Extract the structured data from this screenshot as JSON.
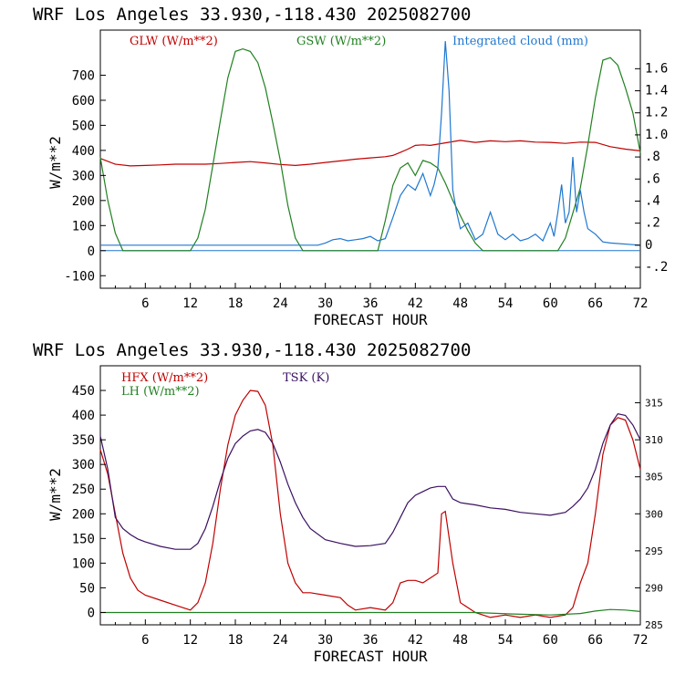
{
  "chart_data": [
    {
      "type": "line",
      "title": "WRF  Los Angeles   33.930,-118.430  2025082700",
      "xlabel": "FORECAST HOUR",
      "ylabel": "W/m**2",
      "xlim": [
        0,
        72
      ],
      "ylim": [
        -150,
        880
      ],
      "y2lim": [
        -0.39,
        1.95
      ],
      "grid": false,
      "legend_position": "top",
      "x_ticks": [
        6,
        12,
        18,
        24,
        30,
        36,
        42,
        48,
        54,
        60,
        66,
        72
      ],
      "y_ticks": [
        -100,
        0,
        100,
        200,
        300,
        400,
        500,
        600,
        700
      ],
      "y2_ticks": [
        -0.2,
        0,
        0.2,
        0.4,
        0.6,
        0.8,
        1.0,
        1.2,
        1.4,
        1.6
      ],
      "y2_tick_labels": [
        "-.2",
        "0",
        ".2",
        ".4",
        ".6",
        ".8",
        "1.0",
        "1.2",
        "1.4",
        "1.6"
      ],
      "series": [
        {
          "name": "GLW (W/m**2)",
          "color": "#c00000",
          "axis": "left",
          "x": [
            0,
            2,
            4,
            6,
            8,
            10,
            12,
            14,
            16,
            18,
            20,
            22,
            24,
            26,
            28,
            30,
            32,
            34,
            36,
            38,
            39,
            40,
            41,
            42,
            43,
            44,
            45,
            46,
            48,
            50,
            52,
            54,
            56,
            58,
            60,
            62,
            64,
            66,
            68,
            70,
            72
          ],
          "y": [
            368,
            345,
            338,
            340,
            342,
            345,
            345,
            345,
            348,
            352,
            355,
            350,
            344,
            340,
            345,
            352,
            358,
            365,
            370,
            375,
            380,
            392,
            405,
            420,
            422,
            420,
            425,
            430,
            440,
            432,
            438,
            435,
            438,
            433,
            432,
            428,
            433,
            432,
            415,
            405,
            398
          ]
        },
        {
          "name": "GSW (W/m**2)",
          "color": "#208020",
          "axis": "left",
          "x": [
            0,
            1,
            2,
            3,
            12,
            13,
            14,
            15,
            16,
            17,
            18,
            19,
            20,
            21,
            22,
            23,
            24,
            25,
            26,
            27,
            37,
            38,
            39,
            40,
            41,
            42,
            43,
            44,
            45,
            46,
            47,
            48,
            49,
            50,
            51,
            61,
            62,
            63,
            64,
            65,
            66,
            67,
            68,
            69,
            70,
            71,
            72
          ],
          "y": [
            372,
            200,
            70,
            0,
            0,
            50,
            165,
            340,
            520,
            690,
            795,
            805,
            795,
            750,
            650,
            510,
            360,
            180,
            50,
            0,
            0,
            120,
            260,
            330,
            350,
            300,
            360,
            350,
            330,
            270,
            200,
            140,
            80,
            30,
            0,
            0,
            50,
            150,
            250,
            420,
            610,
            760,
            770,
            740,
            650,
            550,
            390
          ]
        },
        {
          "name": "Integrated cloud (mm)",
          "color": "#1f77d0",
          "axis": "right",
          "x": [
            0,
            29,
            30,
            31,
            32,
            33,
            34,
            35,
            36,
            37,
            38,
            39,
            40,
            41,
            42,
            43,
            44,
            44.5,
            45,
            45.5,
            46,
            46.5,
            47,
            47.5,
            48,
            49,
            50,
            51,
            52,
            53,
            54,
            55,
            56,
            57,
            58,
            59,
            60,
            60.5,
            61,
            61.5,
            62,
            62.5,
            63,
            63.5,
            64,
            64.5,
            65,
            66,
            67,
            68,
            72
          ],
          "y": [
            0,
            0,
            0.02,
            0.05,
            0.06,
            0.04,
            0.05,
            0.06,
            0.08,
            0.04,
            0.06,
            0.25,
            0.45,
            0.55,
            0.5,
            0.65,
            0.45,
            0.55,
            0.7,
            1.2,
            1.85,
            1.4,
            0.5,
            0.3,
            0.15,
            0.2,
            0.05,
            0.1,
            0.3,
            0.1,
            0.05,
            0.1,
            0.04,
            0.06,
            0.1,
            0.04,
            0.2,
            0.08,
            0.3,
            0.55,
            0.2,
            0.3,
            0.8,
            0.3,
            0.5,
            0.3,
            0.15,
            0.1,
            0.03,
            0.02,
            0.0
          ]
        }
      ]
    },
    {
      "type": "line",
      "title": "WRF  Los Angeles   33.930,-118.430  2025082700",
      "xlabel": "FORECAST HOUR",
      "ylabel": "W/m**2",
      "xlim": [
        0,
        72
      ],
      "ylim": [
        -25,
        500
      ],
      "y2lim": [
        285,
        320
      ],
      "grid": false,
      "legend_position": "top-left",
      "x_ticks": [
        6,
        12,
        18,
        24,
        30,
        36,
        42,
        48,
        54,
        60,
        66,
        72
      ],
      "y_ticks": [
        0,
        50,
        100,
        150,
        200,
        250,
        300,
        350,
        400,
        450
      ],
      "y2_ticks": [
        285,
        290,
        295,
        300,
        305,
        310,
        315
      ],
      "series": [
        {
          "name": "HFX (W/m**2)",
          "color": "#c00000",
          "axis": "left",
          "x": [
            0,
            1,
            2,
            3,
            4,
            5,
            6,
            8,
            10,
            12,
            13,
            14,
            15,
            16,
            17,
            18,
            19,
            20,
            21,
            22,
            23,
            24,
            25,
            26,
            27,
            28,
            30,
            32,
            33,
            34,
            36,
            38,
            39,
            40,
            41,
            42,
            43,
            44,
            45,
            45.5,
            46,
            47,
            48,
            50,
            52,
            54,
            56,
            58,
            60,
            62,
            63,
            64,
            65,
            66,
            67,
            68,
            69,
            70,
            71,
            72
          ],
          "y": [
            330,
            280,
            200,
            120,
            70,
            45,
            35,
            25,
            15,
            5,
            20,
            60,
            140,
            250,
            340,
            400,
            430,
            450,
            448,
            420,
            340,
            200,
            100,
            60,
            40,
            40,
            35,
            30,
            15,
            5,
            10,
            5,
            20,
            60,
            65,
            65,
            60,
            70,
            80,
            200,
            205,
            100,
            20,
            0,
            -10,
            -5,
            -10,
            -5,
            -10,
            -5,
            10,
            60,
            100,
            200,
            320,
            380,
            395,
            390,
            350,
            290
          ]
        },
        {
          "name": "LH  (W/m**2)",
          "color": "#208020",
          "axis": "left",
          "x": [
            0,
            50,
            55,
            60,
            64,
            66,
            68,
            70,
            72
          ],
          "y": [
            0,
            0,
            -3,
            -5,
            -2,
            3,
            6,
            5,
            2
          ]
        },
        {
          "name": "TSK (K)",
          "color": "#3a1060",
          "axis": "right",
          "x": [
            0,
            1,
            2,
            3,
            4,
            5,
            6,
            8,
            10,
            12,
            13,
            14,
            15,
            16,
            17,
            18,
            19,
            20,
            21,
            22,
            23,
            24,
            25,
            26,
            27,
            28,
            30,
            32,
            34,
            36,
            38,
            39,
            40,
            41,
            42,
            43,
            44,
            45,
            46,
            47,
            48,
            50,
            52,
            54,
            56,
            58,
            60,
            62,
            63,
            64,
            65,
            66,
            67,
            68,
            69,
            70,
            71,
            72
          ],
          "y": [
            310.5,
            306,
            299.5,
            298,
            297.2,
            296.6,
            296.2,
            295.6,
            295.2,
            295.2,
            296,
            298,
            301,
            304.5,
            307.5,
            309.5,
            310.5,
            311.2,
            311.4,
            311,
            309.5,
            307,
            304,
            301.5,
            299.5,
            298,
            296.5,
            296,
            295.6,
            295.7,
            296,
            297.5,
            299.5,
            301.5,
            302.5,
            303,
            303.5,
            303.7,
            303.7,
            302,
            301.5,
            301.2,
            300.8,
            300.6,
            300.2,
            300,
            299.8,
            300.2,
            301,
            302,
            303.5,
            306,
            309.5,
            312,
            313.5,
            313.3,
            312,
            310
          ]
        }
      ]
    }
  ]
}
